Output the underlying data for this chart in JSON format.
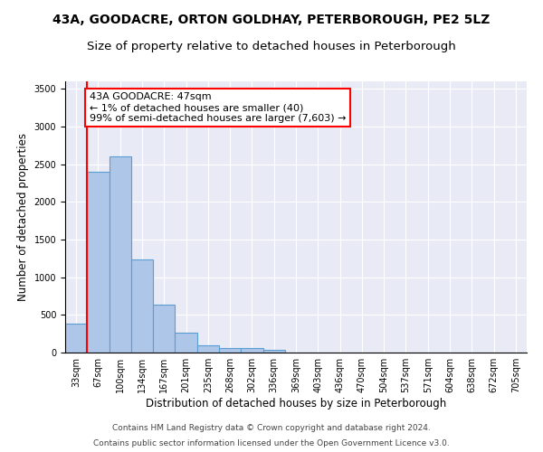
{
  "title1": "43A, GOODACRE, ORTON GOLDHAY, PETERBOROUGH, PE2 5LZ",
  "title2": "Size of property relative to detached houses in Peterborough",
  "xlabel": "Distribution of detached houses by size in Peterborough",
  "ylabel": "Number of detached properties",
  "footnote1": "Contains HM Land Registry data © Crown copyright and database right 2024.",
  "footnote2": "Contains public sector information licensed under the Open Government Licence v3.0.",
  "annotation_title": "43A GOODACRE: 47sqm",
  "annotation_line2": "← 1% of detached houses are smaller (40)",
  "annotation_line3": "99% of semi-detached houses are larger (7,603) →",
  "bar_labels": [
    "33sqm",
    "67sqm",
    "100sqm",
    "134sqm",
    "167sqm",
    "201sqm",
    "235sqm",
    "268sqm",
    "302sqm",
    "336sqm",
    "369sqm",
    "403sqm",
    "436sqm",
    "470sqm",
    "504sqm",
    "537sqm",
    "571sqm",
    "604sqm",
    "638sqm",
    "672sqm",
    "705sqm"
  ],
  "bar_values": [
    390,
    2400,
    2600,
    1240,
    640,
    260,
    95,
    65,
    60,
    40,
    0,
    0,
    0,
    0,
    0,
    0,
    0,
    0,
    0,
    0,
    0
  ],
  "bar_color": "#aec6e8",
  "bar_edge_color": "#5a9fd4",
  "ylim": [
    0,
    3600
  ],
  "yticks": [
    0,
    500,
    1000,
    1500,
    2000,
    2500,
    3000,
    3500
  ],
  "bg_color": "#e8eaf6",
  "grid_color": "#ffffff",
  "title_fontsize": 10,
  "subtitle_fontsize": 9.5,
  "axis_label_fontsize": 8.5,
  "tick_fontsize": 7,
  "footnote_fontsize": 6.5,
  "annotation_fontsize": 8
}
